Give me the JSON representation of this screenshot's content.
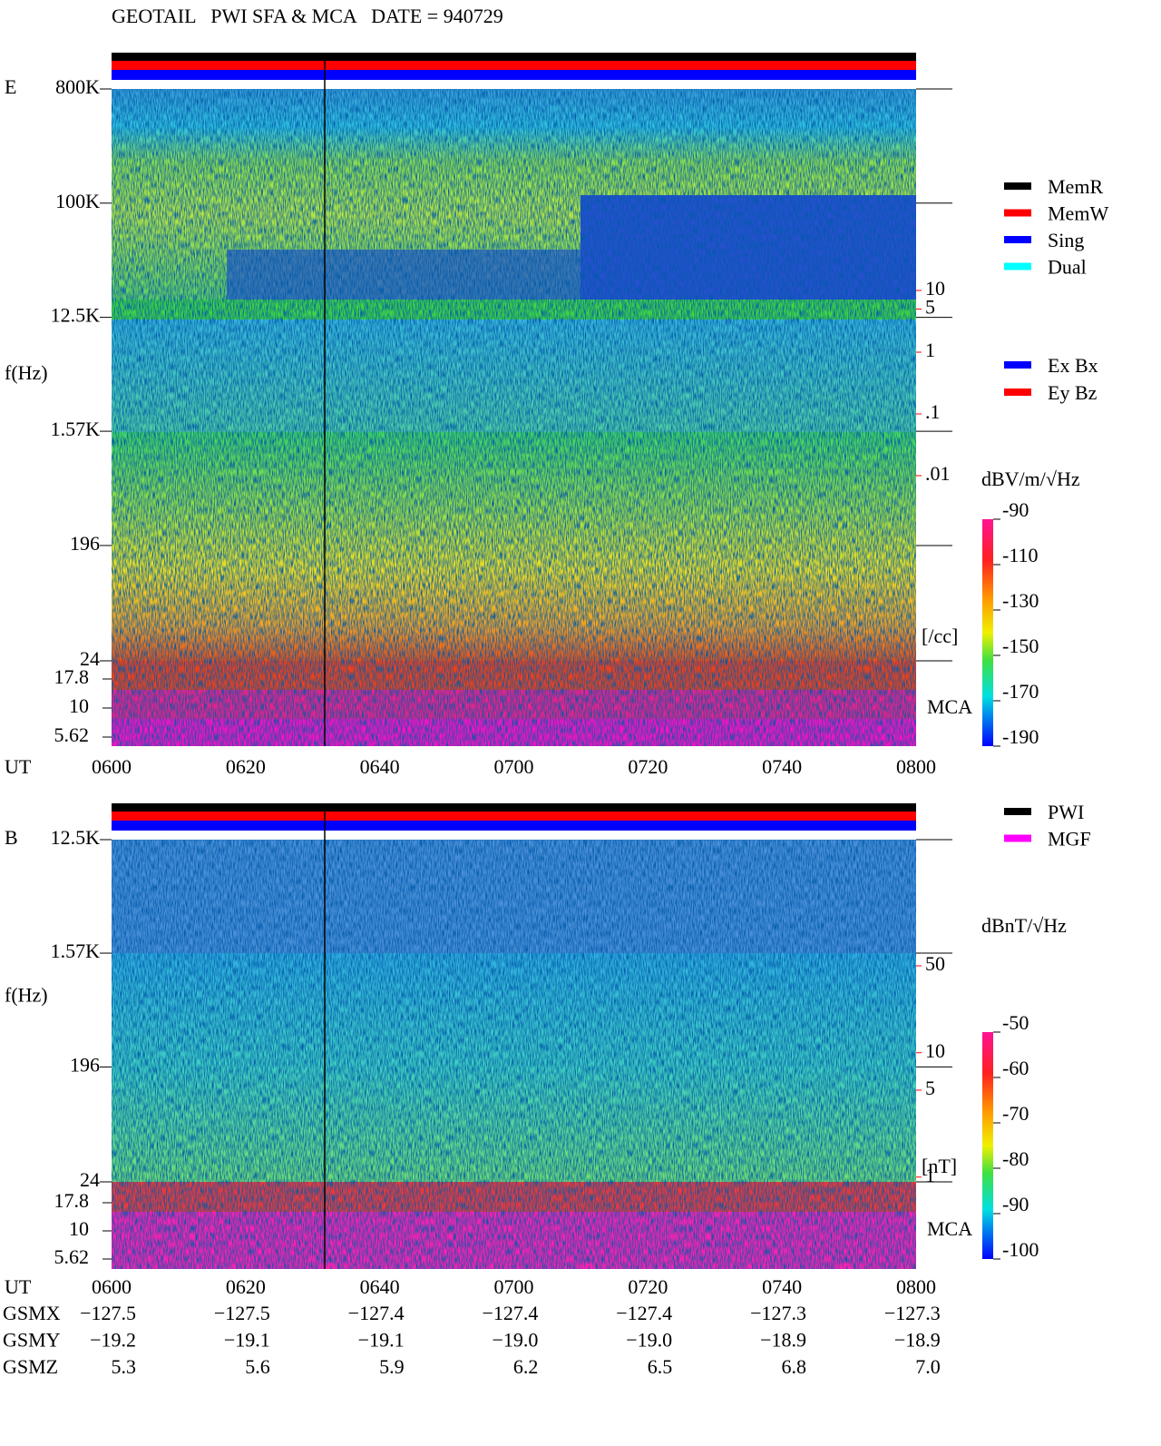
{
  "chart_data": [
    {
      "type": "spectrogram",
      "title": "GEOTAIL   PWI SFA & MCA   DATE = 940729",
      "panel_label": "E",
      "y_label": "f(Hz)",
      "x_label": "UT",
      "yscale": "log",
      "ylim": [
        24,
        800000
      ],
      "yticks": [
        {
          "value": 800000,
          "label": "800K"
        },
        {
          "value": 100000,
          "label": "100K"
        },
        {
          "value": 12500,
          "label": "12.5K"
        },
        {
          "value": 1570,
          "label": "1.57K"
        },
        196,
        24
      ],
      "xticks": [
        "0600",
        "0620",
        "0640",
        "0700",
        "0720",
        "0740",
        "0800"
      ],
      "mca_label": "MCA",
      "mca_yticks": [
        17.8,
        10,
        5.62
      ],
      "legend": [
        {
          "name": "MemR",
          "color": "#000000"
        },
        {
          "name": "MemW",
          "color": "#ff0000"
        },
        {
          "name": "Sing",
          "color": "#0000ff"
        },
        {
          "name": "Dual",
          "color": "#00ffff"
        }
      ],
      "antenna_legend": [
        {
          "name": "Ex Bx",
          "color": "#0000ff"
        },
        {
          "name": "Ey Bz",
          "color": "#ff0000"
        }
      ],
      "scale_ticks": [
        10,
        5,
        1,
        {
          "value": 0.1,
          "label": ".1"
        },
        {
          "value": 0.01,
          "label": ".01"
        }
      ],
      "scale_unit": "[/cc]",
      "colorbar_label": "dBV/m/√Hz",
      "colorbar_ticks": [
        -90,
        -110,
        -130,
        -150,
        -170,
        -190
      ]
    },
    {
      "type": "spectrogram",
      "panel_label": "B",
      "y_label": "f(Hz)",
      "x_label": "UT",
      "yscale": "log",
      "ylim": [
        24,
        12500
      ],
      "yticks": [
        {
          "value": 12500,
          "label": "12.5K"
        },
        {
          "value": 1570,
          "label": "1.57K"
        },
        196,
        24
      ],
      "xticks": [
        "0600",
        "0620",
        "0640",
        "0700",
        "0720",
        "0740",
        "0800"
      ],
      "mca_label": "MCA",
      "mca_yticks": [
        17.8,
        10,
        5.62
      ],
      "legend": [
        {
          "name": "PWI",
          "color": "#000000"
        },
        {
          "name": "MGF",
          "color": "#ff00ff"
        }
      ],
      "scale_ticks": [
        50,
        10,
        5,
        1
      ],
      "scale_unit": "[nT]",
      "colorbar_label": "dBnT/√Hz",
      "colorbar_ticks": [
        -50,
        -60,
        -70,
        -80,
        -90,
        -100
      ]
    }
  ],
  "orbit": {
    "rows": [
      {
        "label": "GSMX",
        "values": [
          "−127.5",
          "−127.5",
          "−127.4",
          "−127.4",
          "−127.4",
          "−127.3",
          "−127.3"
        ]
      },
      {
        "label": "GSMY",
        "values": [
          "−19.2",
          "−19.1",
          "−19.1",
          "−19.0",
          "−19.0",
          "−18.9",
          "−18.9"
        ]
      },
      {
        "label": "GSMZ",
        "values": [
          "5.3",
          "5.6",
          "5.9",
          "6.2",
          "6.5",
          "6.8",
          "7.0"
        ]
      }
    ]
  }
}
